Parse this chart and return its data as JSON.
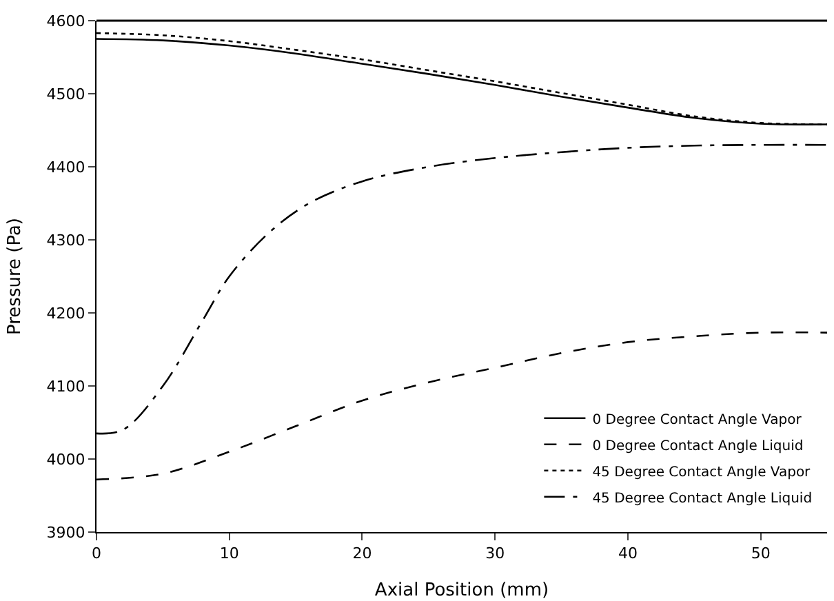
{
  "chart_data": {
    "type": "line",
    "xlabel": "Axial Position (mm)",
    "ylabel": "Pressure (Pa)",
    "xlim": [
      0,
      55
    ],
    "xticks": [
      0,
      10,
      20,
      30,
      40,
      50
    ],
    "ylim": [
      3900,
      4600
    ],
    "yticks": [
      3900,
      4000,
      4100,
      4200,
      4300,
      4400,
      4500,
      4600
    ],
    "legend": "bottom right",
    "marker": "none",
    "series": [
      {
        "name": "0 Degree Contact Angle Vapor",
        "color": "#000000",
        "line_style": "solid",
        "x": [
          0,
          5,
          10,
          15,
          20,
          25,
          30,
          35,
          40,
          45,
          50,
          55
        ],
        "values": [
          4575,
          4573,
          4566,
          4555,
          4541,
          4527,
          4512,
          4496,
          4481,
          4467,
          4459,
          4458
        ]
      },
      {
        "name": "0 Degree Contact Angle Liquid",
        "color": "#000000",
        "line_style": "dashed",
        "x": [
          0,
          5,
          10,
          15,
          20,
          25,
          30,
          35,
          40,
          45,
          50,
          55
        ],
        "values": [
          3972,
          3980,
          4010,
          4045,
          4080,
          4105,
          4125,
          4145,
          4160,
          4168,
          4173,
          4173
        ]
      },
      {
        "name": "45 Degree Contact Angle Vapor",
        "color": "#000000",
        "line_style": "dotted",
        "x": [
          0,
          5,
          10,
          15,
          20,
          25,
          30,
          35,
          40,
          45,
          50,
          55
        ],
        "values": [
          4583,
          4580,
          4572,
          4560,
          4547,
          4532,
          4517,
          4501,
          4485,
          4469,
          4460,
          4458
        ]
      },
      {
        "name": "45 Degree Contact Angle Liquid",
        "color": "#000000",
        "line_style": "dashdot",
        "x": [
          0,
          2,
          5,
          8,
          10,
          13,
          16,
          20,
          25,
          30,
          35,
          40,
          45,
          50,
          55
        ],
        "values": [
          4035,
          4040,
          4100,
          4190,
          4250,
          4310,
          4350,
          4380,
          4400,
          4412,
          4420,
          4426,
          4429,
          4430,
          4430
        ]
      }
    ]
  }
}
